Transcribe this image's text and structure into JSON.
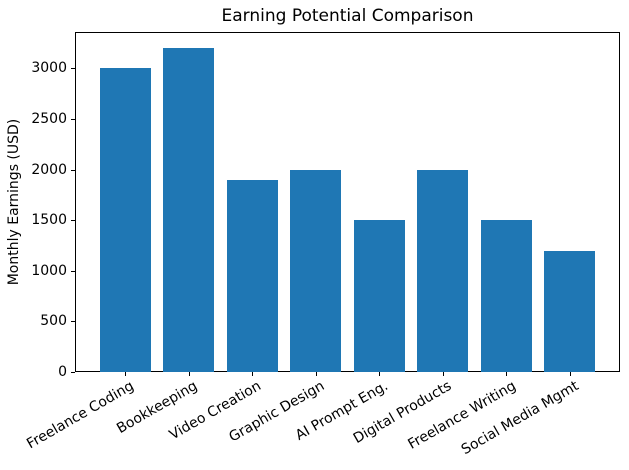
{
  "chart_data": {
    "type": "bar",
    "title": "Earning Potential Comparison",
    "xlabel": "",
    "ylabel": "Monthly Earnings (USD)",
    "categories": [
      "Freelance Coding",
      "Bookkeeping",
      "Video Creation",
      "Graphic Design",
      "AI Prompt Eng.",
      "Digital Products",
      "Freelance Writing",
      "Social Media Mgmt"
    ],
    "values": [
      3000,
      3200,
      1900,
      2000,
      1500,
      2000,
      1500,
      1200
    ],
    "yticks": [
      0,
      500,
      1000,
      1500,
      2000,
      2500,
      3000
    ],
    "ylim": [
      0,
      3360
    ],
    "bar_color": "#1f77b4",
    "bar_relative_width": 0.8,
    "x_tick_rotation_deg": 30,
    "grid": false,
    "legend": "none"
  }
}
